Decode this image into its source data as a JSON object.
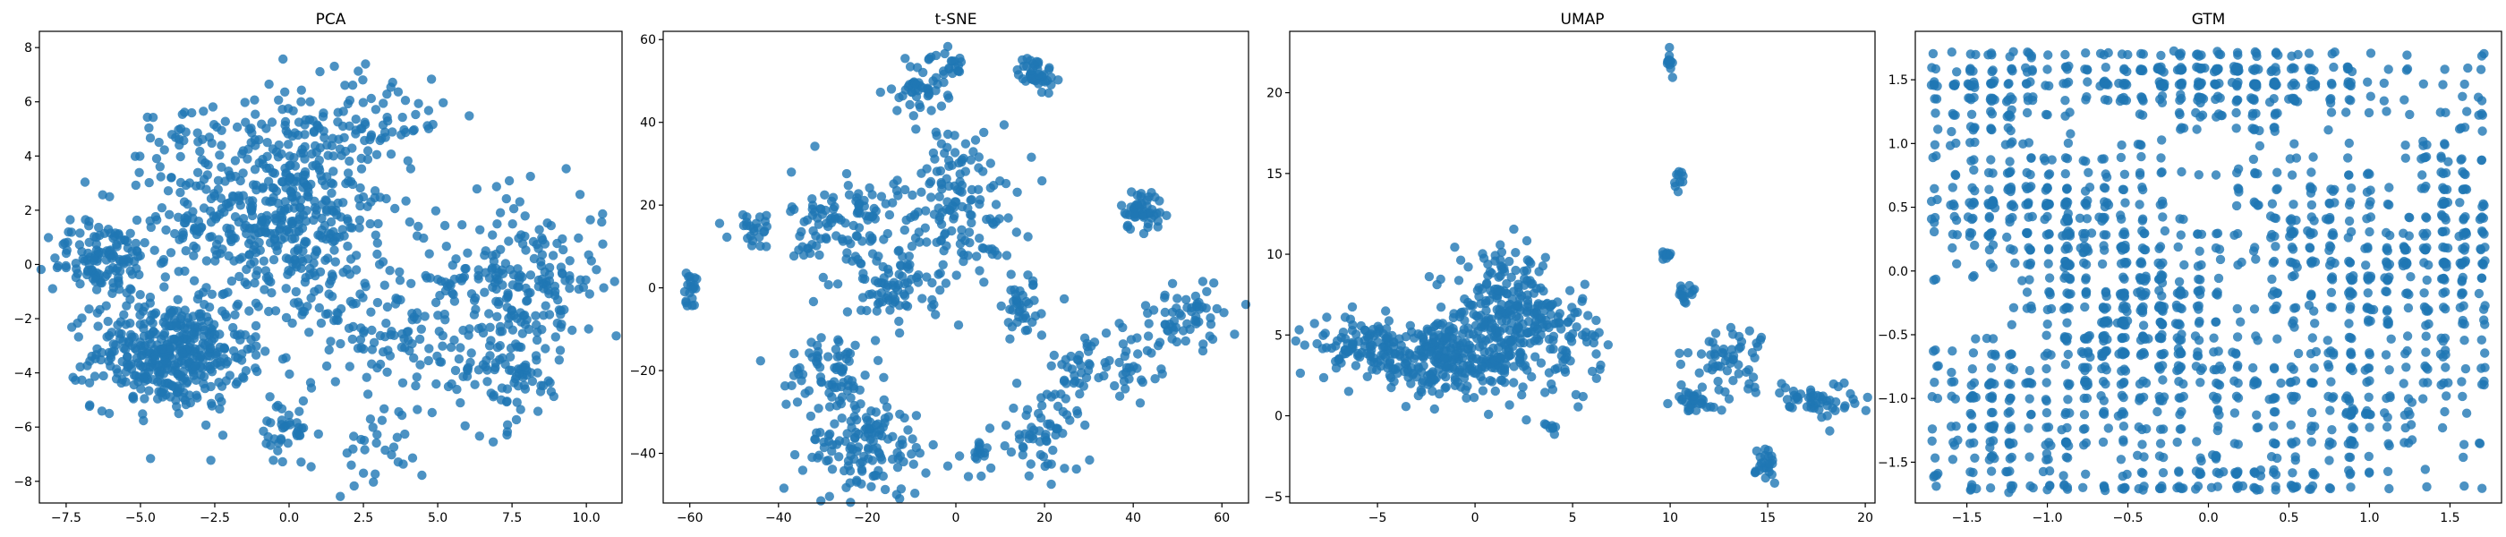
{
  "figure": {
    "background": "#ffffff",
    "marker_color": "#1f77b4",
    "marker_alpha": 0.8
  },
  "chart_data": [
    {
      "type": "scatter",
      "title": "PCA",
      "xlim": [
        -8.4,
        11.2
      ],
      "ylim": [
        -8.8,
        8.6
      ],
      "xticks": [
        -7.5,
        -5.0,
        -2.5,
        0.0,
        2.5,
        5.0,
        7.5,
        10.0
      ],
      "xtick_labels": [
        "−7.5",
        "−5.0",
        "−2.5",
        "0.0",
        "2.5",
        "5.0",
        "7.5",
        "10.0"
      ],
      "yticks": [
        -8,
        -6,
        -4,
        -2,
        0,
        2,
        4,
        6,
        8
      ],
      "ytick_labels": [
        "−8",
        "−6",
        "−4",
        "−2",
        "0",
        "2",
        "4",
        "6",
        "8"
      ],
      "grid": false,
      "clusters": [
        {
          "cx": 0.0,
          "cy": 2.0,
          "sx": 1.7,
          "sy": 2.2,
          "n": 520
        },
        {
          "cx": -4.0,
          "cy": -3.3,
          "sx": 1.3,
          "sy": 1.0,
          "n": 420
        },
        {
          "cx": -6.3,
          "cy": 0.2,
          "sx": 0.9,
          "sy": 0.7,
          "n": 130
        },
        {
          "cx": -3.6,
          "cy": 2.8,
          "sx": 1.0,
          "sy": 1.7,
          "n": 80
        },
        {
          "cx": 7.8,
          "cy": -0.6,
          "sx": 1.4,
          "sy": 1.6,
          "n": 220
        },
        {
          "cx": 7.3,
          "cy": -4.2,
          "sx": 1.0,
          "sy": 1.0,
          "n": 70
        },
        {
          "cx": 3.5,
          "cy": -2.3,
          "sx": 1.4,
          "sy": 1.4,
          "n": 110
        },
        {
          "cx": 0.0,
          "cy": -6.3,
          "sx": 0.5,
          "sy": 0.7,
          "n": 40
        },
        {
          "cx": 3.0,
          "cy": -6.8,
          "sx": 0.8,
          "sy": 0.8,
          "n": 30
        },
        {
          "cx": 3.5,
          "cy": 5.5,
          "sx": 1.0,
          "sy": 0.8,
          "n": 40
        }
      ]
    },
    {
      "type": "scatter",
      "title": "t-SNE",
      "xlim": [
        -66,
        66
      ],
      "ylim": [
        -52,
        62
      ],
      "xticks": [
        -60,
        -40,
        -20,
        0,
        20,
        40,
        60
      ],
      "xtick_labels": [
        "−60",
        "−40",
        "−20",
        "0",
        "20",
        "40",
        "60"
      ],
      "yticks": [
        -40,
        -20,
        0,
        20,
        40,
        60
      ],
      "ytick_labels": [
        "−40",
        "−20",
        "0",
        "20",
        "40",
        "60"
      ],
      "grid": false,
      "clusters": [
        {
          "cx": -60,
          "cy": 0,
          "sx": 0.8,
          "sy": 2.2,
          "n": 20
        },
        {
          "cx": -8,
          "cy": 48,
          "sx": 3.0,
          "sy": 3.0,
          "n": 45
        },
        {
          "cx": 18,
          "cy": 52,
          "sx": 2.0,
          "sy": 2.0,
          "n": 45
        },
        {
          "cx": -2,
          "cy": 54,
          "sx": 2.0,
          "sy": 1.5,
          "n": 20
        },
        {
          "cx": 42,
          "cy": 19,
          "sx": 2.5,
          "sy": 2.5,
          "n": 50
        },
        {
          "cx": -25,
          "cy": 15,
          "sx": 6.0,
          "sy": 7.0,
          "n": 110
        },
        {
          "cx": 0,
          "cy": 20,
          "sx": 7.0,
          "sy": 10.0,
          "n": 150
        },
        {
          "cx": -20,
          "cy": -38,
          "sx": 7.0,
          "sy": 6.0,
          "n": 140
        },
        {
          "cx": -28,
          "cy": -20,
          "sx": 5.0,
          "sy": 5.0,
          "n": 70
        },
        {
          "cx": -15,
          "cy": 0,
          "sx": 5.0,
          "sy": 5.0,
          "n": 70
        },
        {
          "cx": 15,
          "cy": -5,
          "sx": 4.0,
          "sy": 4.0,
          "n": 40
        },
        {
          "cx": 20,
          "cy": -35,
          "sx": 4.0,
          "sy": 5.0,
          "n": 60
        },
        {
          "cx": 27,
          "cy": -20,
          "sx": 4.0,
          "sy": 4.0,
          "n": 40
        },
        {
          "cx": 52,
          "cy": -7,
          "sx": 6.0,
          "sy": 4.0,
          "n": 60
        },
        {
          "cx": 40,
          "cy": -18,
          "sx": 3.0,
          "sy": 4.0,
          "n": 30
        },
        {
          "cx": -45,
          "cy": 14,
          "sx": 3.0,
          "sy": 2.0,
          "n": 25
        },
        {
          "cx": 5,
          "cy": -40,
          "sx": 2.0,
          "sy": 3.0,
          "n": 15
        }
      ]
    },
    {
      "type": "scatter",
      "title": "UMAP",
      "xlim": [
        -9.5,
        20.5
      ],
      "ylim": [
        -5.4,
        23.8
      ],
      "xticks": [
        -5,
        0,
        5,
        10,
        15,
        20
      ],
      "xtick_labels": [
        "−5",
        "0",
        "5",
        "10",
        "15",
        "20"
      ],
      "yticks": [
        -5,
        0,
        5,
        10,
        15,
        20
      ],
      "ytick_labels": [
        "−5",
        "0",
        "5",
        "10",
        "15",
        "20"
      ],
      "grid": false,
      "clusters": [
        {
          "cx": -1.5,
          "cy": 3.5,
          "sx": 2.5,
          "sy": 1.1,
          "n": 300
        },
        {
          "cx": 1.5,
          "cy": 6.5,
          "sx": 1.3,
          "sy": 1.7,
          "n": 200
        },
        {
          "cx": -6.0,
          "cy": 4.5,
          "sx": 1.2,
          "sy": 0.8,
          "n": 80
        },
        {
          "cx": 4.5,
          "cy": 5.0,
          "sx": 1.0,
          "sy": 1.6,
          "n": 80
        },
        {
          "cx": 10.0,
          "cy": 22.0,
          "sx": 0.12,
          "sy": 0.3,
          "n": 12
        },
        {
          "cx": 10.4,
          "cy": 14.8,
          "sx": 0.15,
          "sy": 0.4,
          "n": 10
        },
        {
          "cx": 9.8,
          "cy": 9.8,
          "sx": 0.2,
          "sy": 0.25,
          "n": 10
        },
        {
          "cx": 10.8,
          "cy": 7.5,
          "sx": 0.25,
          "sy": 0.4,
          "n": 15
        },
        {
          "cx": 13.0,
          "cy": 3.5,
          "sx": 1.0,
          "sy": 1.0,
          "n": 60
        },
        {
          "cx": 11.0,
          "cy": 1.0,
          "sx": 0.6,
          "sy": 0.4,
          "n": 30
        },
        {
          "cx": 17.5,
          "cy": 1.0,
          "sx": 1.0,
          "sy": 0.6,
          "n": 50
        },
        {
          "cx": 15.0,
          "cy": -3.0,
          "sx": 0.3,
          "sy": 0.6,
          "n": 25
        },
        {
          "cx": 4.0,
          "cy": -0.7,
          "sx": 0.2,
          "sy": 0.2,
          "n": 8
        }
      ]
    },
    {
      "type": "scatter",
      "title": "GTM",
      "xlim": [
        -1.82,
        1.82
      ],
      "ylim": [
        -1.82,
        1.88
      ],
      "xticks": [
        -1.5,
        -1.0,
        -0.5,
        0.0,
        0.5,
        1.0,
        1.5
      ],
      "xtick_labels": [
        "−1.5",
        "−1.0",
        "−0.5",
        "0.0",
        "0.5",
        "1.0",
        "1.5"
      ],
      "yticks": [
        -1.5,
        -1.0,
        -0.5,
        0.0,
        0.5,
        1.0,
        1.5
      ],
      "ytick_labels": [
        "−1.5",
        "−1.0",
        "−0.5",
        "0.0",
        "0.5",
        "1.0",
        "1.5"
      ],
      "grid": false,
      "grid_nodes": 30,
      "grid_extent": [
        -1.7,
        1.7
      ],
      "clusters": [
        {
          "cx": -0.5,
          "cy": -0.5,
          "sx": 0.3,
          "sy": 0.5,
          "n": 380
        },
        {
          "cx": -1.1,
          "cy": 0.5,
          "sx": 0.35,
          "sy": 0.3,
          "n": 220
        },
        {
          "cx": 0.0,
          "cy": 1.5,
          "sx": 0.6,
          "sy": 0.15,
          "n": 300
        },
        {
          "cx": -1.3,
          "cy": -1.2,
          "sx": 0.3,
          "sy": 0.4,
          "n": 160
        },
        {
          "cx": 1.5,
          "cy": 0.3,
          "sx": 0.15,
          "sy": 0.6,
          "n": 180
        },
        {
          "cx": 0.8,
          "cy": 0.2,
          "sx": 0.3,
          "sy": 0.4,
          "n": 150
        },
        {
          "cx": 0.5,
          "cy": -1.0,
          "sx": 0.4,
          "sy": 0.4,
          "n": 160
        },
        {
          "cx": 1.0,
          "cy": -0.9,
          "sx": 0.4,
          "sy": 0.5,
          "n": 120
        },
        {
          "cx": 0.0,
          "cy": -1.6,
          "sx": 0.3,
          "sy": 0.1,
          "n": 60
        },
        {
          "cx": 0.0,
          "cy": 0.6,
          "sx": 0.5,
          "sy": 0.5,
          "n": 100
        },
        {
          "cx": -1.4,
          "cy": 1.4,
          "sx": 0.2,
          "sy": 0.2,
          "n": 80
        }
      ]
    }
  ]
}
